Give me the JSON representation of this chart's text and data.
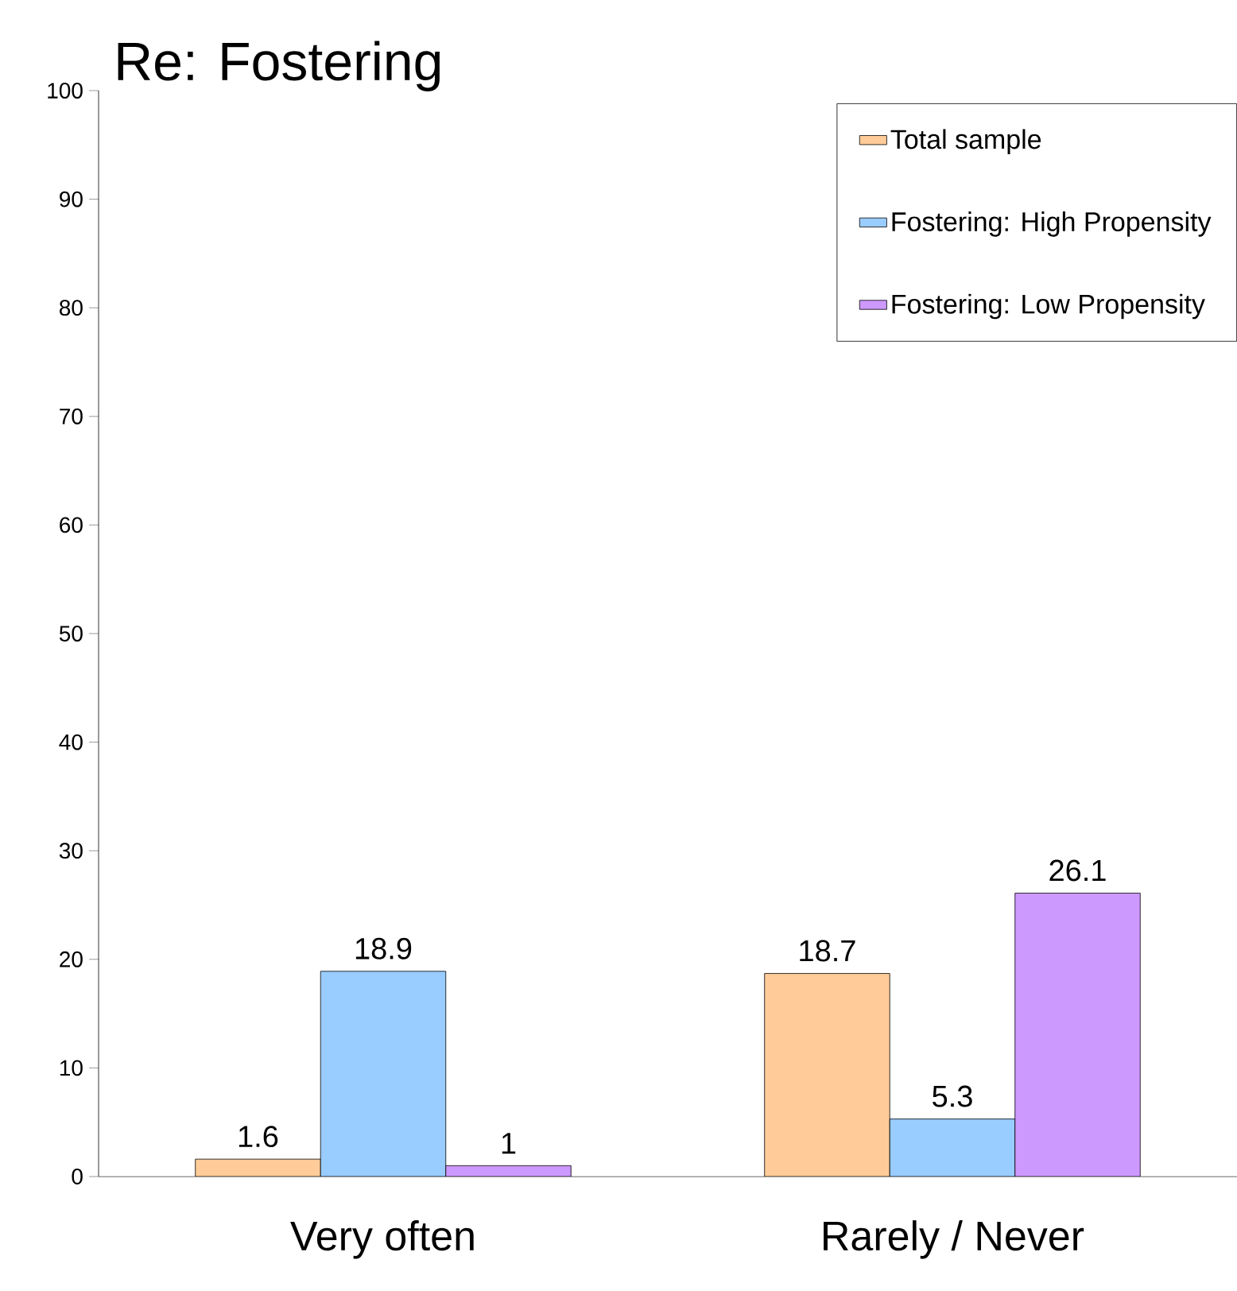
{
  "chart_data": {
    "type": "bar",
    "title": "Re: Fostering",
    "categories": [
      "Very often",
      "Rarely / Never"
    ],
    "series": [
      {
        "name": "Total sample",
        "color": "#ffcc99",
        "values": [
          1.6,
          18.7
        ]
      },
      {
        "name": "Fostering: High Propensity",
        "color": "#99ccff",
        "values": [
          18.9,
          5.3
        ]
      },
      {
        "name": "Fostering: Low Propensity",
        "color": "#cc99ff",
        "values": [
          1,
          26.1
        ]
      }
    ],
    "ylim": [
      0,
      100
    ],
    "yticks": [
      0,
      10,
      20,
      30,
      40,
      50,
      60,
      70,
      80,
      90,
      100
    ],
    "data_labels": true,
    "legend": "top right",
    "grid": false
  }
}
